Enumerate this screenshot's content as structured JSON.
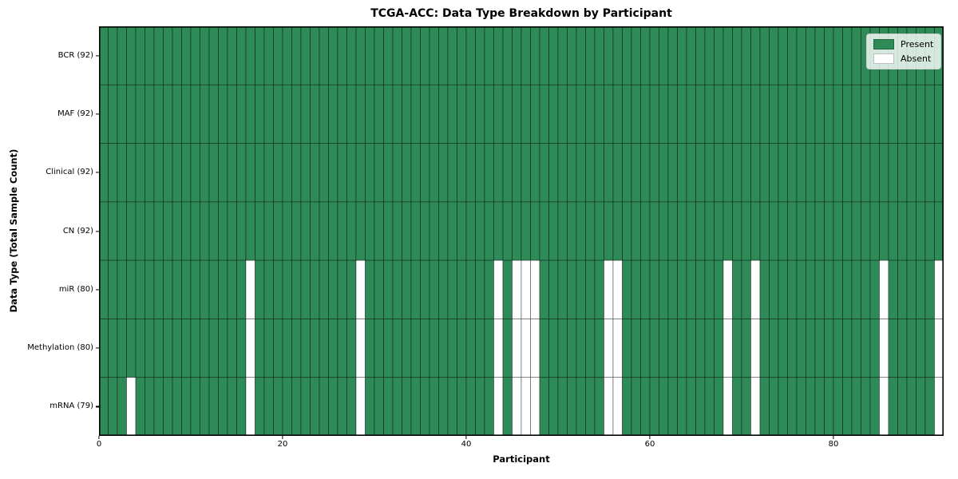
{
  "title": "TCGA-ACC: Data Type Breakdown by Participant",
  "xlabel": "Participant",
  "ylabel": "Data Type (Total Sample Count)",
  "legend": {
    "present_label": "Present",
    "absent_label": "Absent"
  },
  "colors": {
    "present": "#2e8b57",
    "absent": "#ffffff",
    "cell_edge": "rgba(0,0,0,0.55)",
    "spine": "#000000"
  },
  "chart_data": {
    "type": "heatmap",
    "title": "TCGA-ACC: Data Type Breakdown by Participant",
    "xlabel": "Participant",
    "ylabel": "Data Type (Total Sample Count)",
    "n_participants": 92,
    "x_range": [
      0,
      92
    ],
    "x_ticks": [
      0,
      20,
      40,
      60,
      80
    ],
    "grid": true,
    "legend_position": "upper right",
    "legend_entries": [
      "Present",
      "Absent"
    ],
    "rows": [
      {
        "label": "BCR (92)",
        "data_type": "BCR",
        "present_count": 92,
        "absent_participants": []
      },
      {
        "label": "MAF (92)",
        "data_type": "MAF",
        "present_count": 92,
        "absent_participants": []
      },
      {
        "label": "Clinical (92)",
        "data_type": "Clinical",
        "present_count": 92,
        "absent_participants": []
      },
      {
        "label": "CN (92)",
        "data_type": "CN",
        "present_count": 92,
        "absent_participants": []
      },
      {
        "label": "miR (80)",
        "data_type": "miR",
        "present_count": 80,
        "absent_participants": [
          16,
          28,
          43,
          45,
          46,
          47,
          55,
          56,
          68,
          71,
          85,
          91
        ]
      },
      {
        "label": "Methylation (80)",
        "data_type": "Methylation",
        "present_count": 80,
        "absent_participants": [
          16,
          28,
          43,
          45,
          46,
          47,
          55,
          56,
          68,
          71,
          85,
          91
        ]
      },
      {
        "label": "mRNA (79)",
        "data_type": "mRNA",
        "present_count": 79,
        "absent_participants": [
          3,
          16,
          28,
          43,
          45,
          46,
          47,
          55,
          56,
          68,
          71,
          85,
          91
        ]
      }
    ]
  }
}
